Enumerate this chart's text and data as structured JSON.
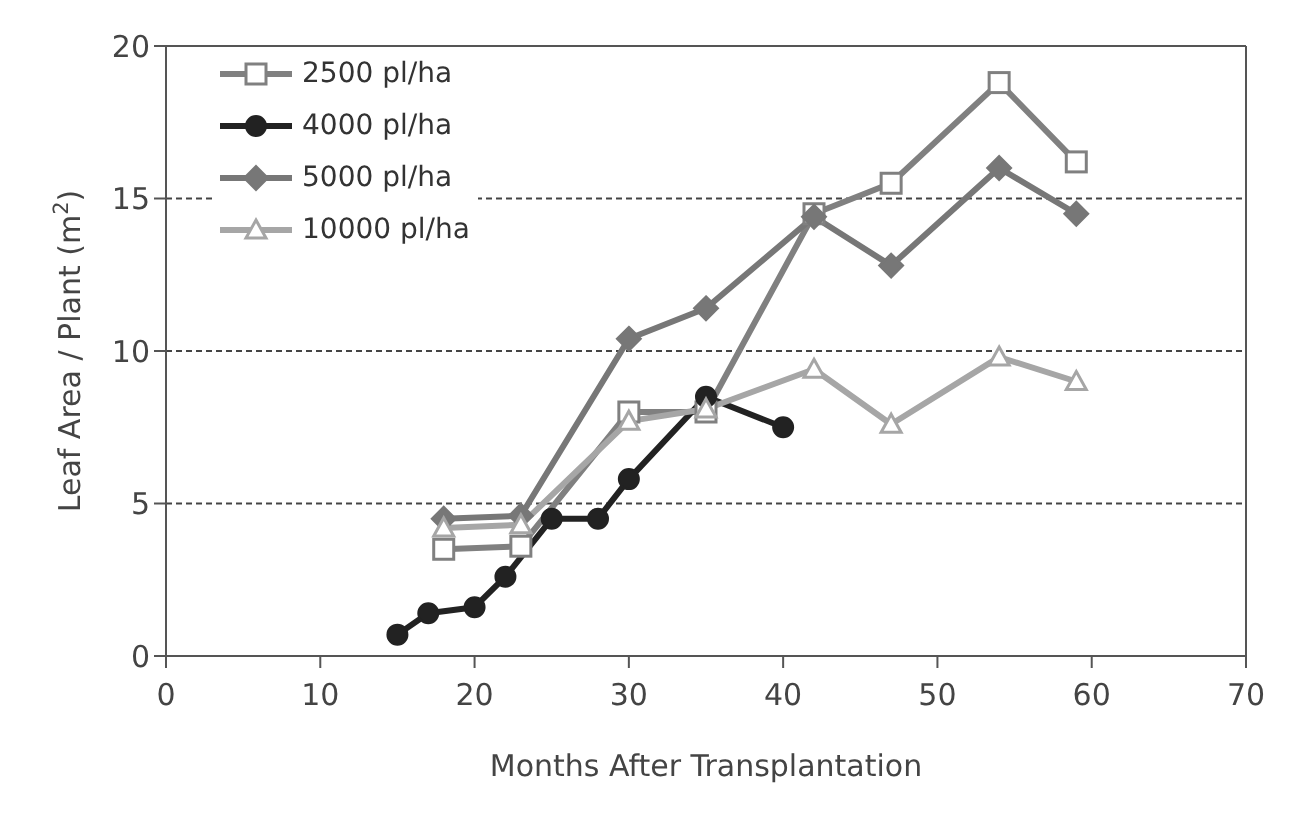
{
  "chart_data": {
    "type": "line",
    "xlabel": "Months After Transplantation",
    "ylabel": "Leaf Area / Plant (m$^{2}$)",
    "xlim": [
      0,
      70
    ],
    "xticks": [
      0,
      10,
      20,
      30,
      40,
      50,
      60,
      70
    ],
    "ylim": [
      0,
      20
    ],
    "yticks": [
      0,
      5,
      10,
      15,
      20
    ],
    "grid": "y",
    "legend": "top left",
    "line_style": "solid",
    "series": [
      {
        "name": "2500 pl/ha",
        "color": "#808080",
        "marker": "square",
        "x": [
          18,
          23,
          30,
          35,
          42,
          47,
          54,
          59
        ],
        "values": [
          3.5,
          3.6,
          8.0,
          8.0,
          14.5,
          15.5,
          18.8,
          16.2
        ]
      },
      {
        "name": "4000 pl/ha",
        "color": "#222222",
        "marker": "circle",
        "x": [
          15,
          17,
          20,
          22,
          25,
          28,
          30,
          35,
          40
        ],
        "values": [
          0.7,
          1.4,
          1.6,
          2.6,
          4.5,
          4.5,
          5.8,
          8.5,
          7.5
        ]
      },
      {
        "name": "5000 pl/ha",
        "color": "#777777",
        "marker": "diamond",
        "x": [
          18,
          23,
          30,
          35,
          42,
          47,
          54,
          59
        ],
        "values": [
          4.5,
          4.6,
          10.4,
          11.4,
          14.4,
          12.8,
          16.0,
          14.5
        ]
      },
      {
        "name": "10000 pl/ha",
        "color": "#a6a6a6",
        "marker": "triangle",
        "x": [
          18,
          23,
          30,
          35,
          42,
          47,
          54,
          59
        ],
        "values": [
          4.2,
          4.3,
          7.7,
          8.1,
          9.4,
          7.6,
          9.8,
          9.0
        ]
      }
    ]
  }
}
